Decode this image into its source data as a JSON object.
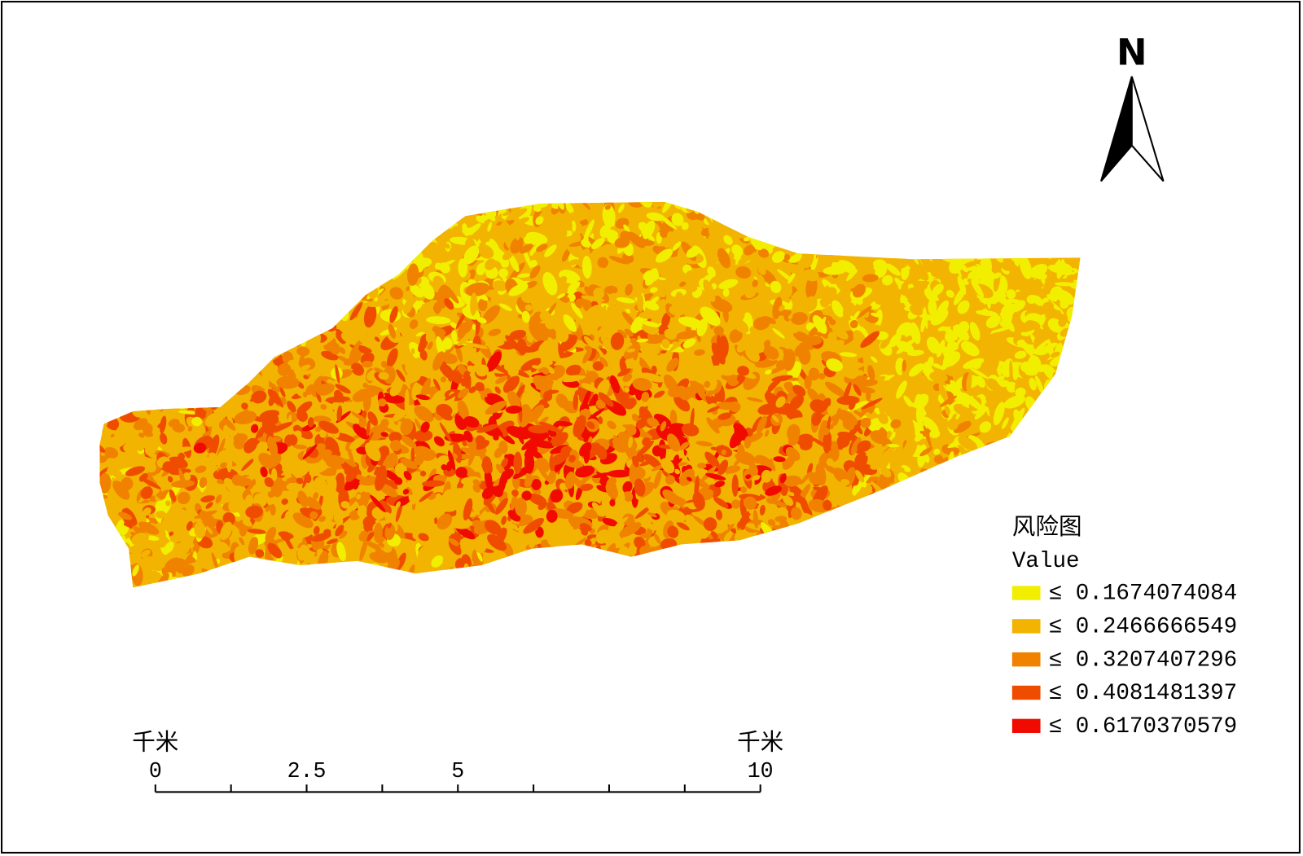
{
  "map": {
    "north_arrow": {
      "label": "N"
    },
    "legend": {
      "title": "风险图",
      "field": "Value",
      "items": [
        {
          "label": "≤ 0.1674074084",
          "color": "#f2ee00"
        },
        {
          "label": "≤ 0.2466666549",
          "color": "#f2b400"
        },
        {
          "label": "≤ 0.3207407296",
          "color": "#f08200"
        },
        {
          "label": "≤ 0.4081481397",
          "color": "#f04c00"
        },
        {
          "label": "≤ 0.6170370579",
          "color": "#f00a00"
        }
      ]
    },
    "scale_bar": {
      "unit_left": "千米",
      "unit_right": "千米",
      "labels": [
        "0",
        "2.5",
        "5",
        "10"
      ]
    }
  }
}
